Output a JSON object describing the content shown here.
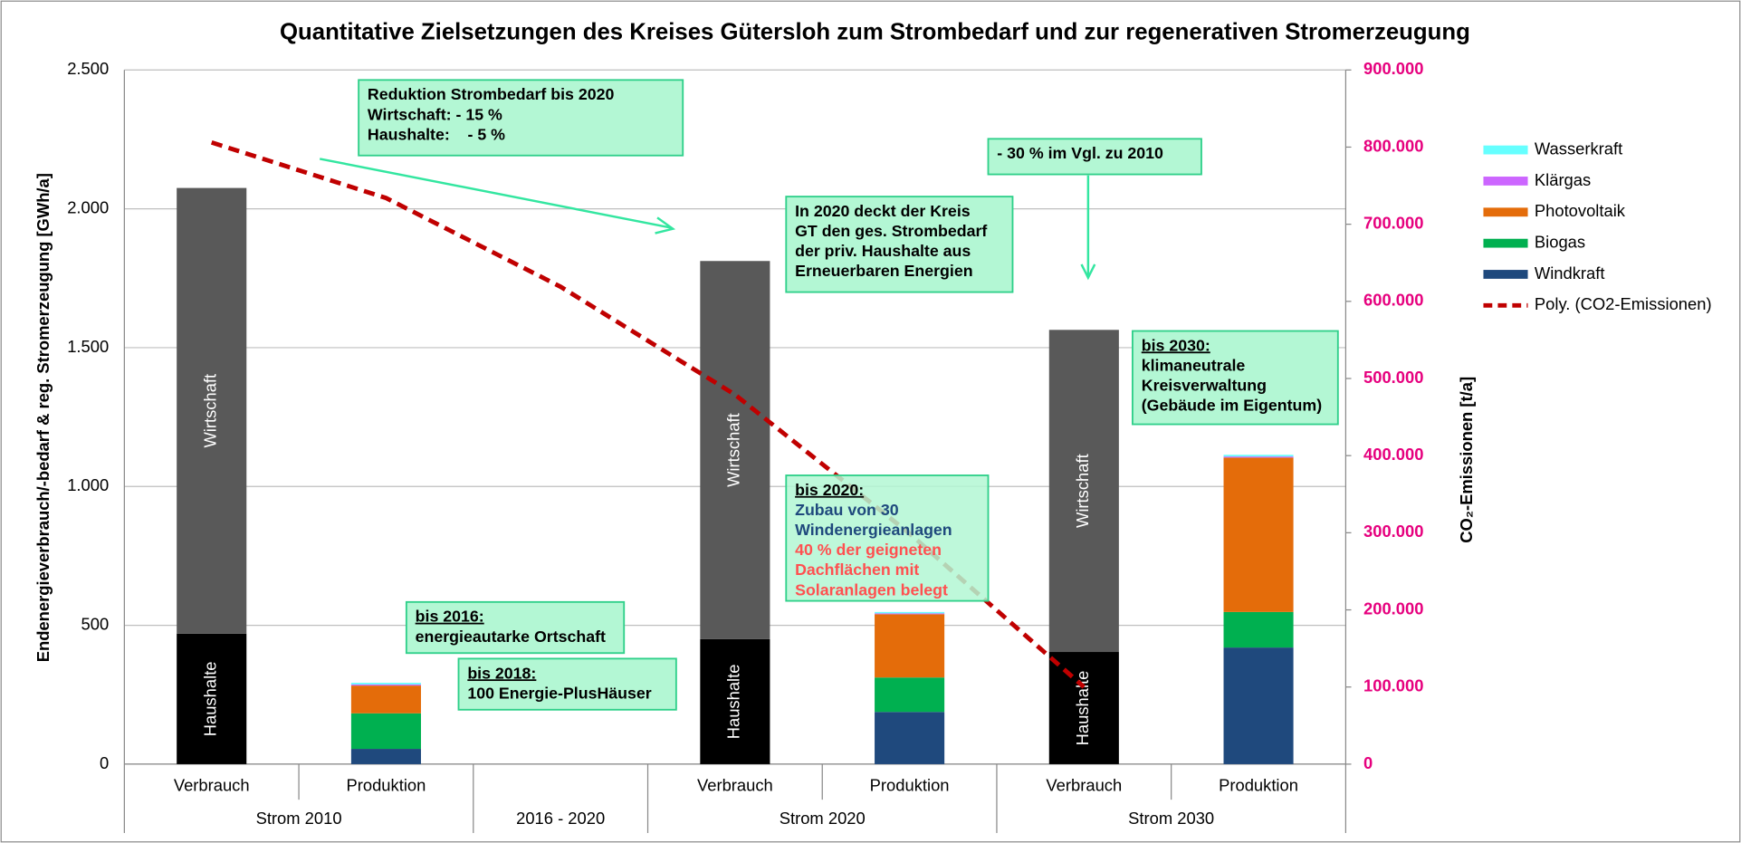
{
  "chart_data": {
    "type": "bar",
    "stacked": true,
    "title": "Quantitative Zielsetzungen des Kreises Gütersloh zum Strombedarf und zur regenerativen Stromerzeugung",
    "y_label": "Endenergieverbrauch/-bedarf & reg. Stromerzeugung [GWh/a]",
    "y2_label": "CO₂-Emissionen [t/a]",
    "categories": [
      "Verbrauch",
      "Produktion",
      null,
      "Verbrauch",
      "Produktion",
      "Verbrauch",
      "Produktion"
    ],
    "groups": [
      "Strom 2010",
      "Strom 2010",
      "2016 - 2020",
      "Strom 2020",
      "Strom 2020",
      "Strom 2030",
      "Strom 2030"
    ],
    "ylim": [
      0,
      2500
    ],
    "yticks": [
      0,
      500,
      {
        "value": 1000,
        "label": "1.000"
      },
      {
        "value": 1500,
        "label": "1.500"
      },
      {
        "value": 2000,
        "label": "2.000"
      },
      {
        "value": 2500,
        "label": "2.500"
      }
    ],
    "y2lim": [
      0,
      900000
    ],
    "y2ticks": [
      {
        "value": 0,
        "label": "0"
      },
      {
        "value": 100000,
        "label": "100.000"
      },
      {
        "value": 200000,
        "label": "200.000"
      },
      {
        "value": 300000,
        "label": "300.000"
      },
      {
        "value": 400000,
        "label": "400.000"
      },
      {
        "value": 500000,
        "label": "500.000"
      },
      {
        "value": 600000,
        "label": "600.000"
      },
      {
        "value": 700000,
        "label": "700.000"
      },
      {
        "value": 800000,
        "label": "800.000"
      },
      {
        "value": 900000,
        "label": "900.000"
      }
    ],
    "grid": true,
    "legend": "right",
    "series": [
      {
        "name": "Haushalte",
        "color": "#000000",
        "in_legend": false,
        "label_inside": true,
        "values": [
          470,
          null,
          null,
          450,
          null,
          404,
          null
        ]
      },
      {
        "name": "Wirtschaft",
        "color": "#595959",
        "in_legend": false,
        "label_inside": true,
        "values": [
          1605,
          null,
          null,
          1362,
          null,
          1160,
          null
        ]
      },
      {
        "name": "Windkraft",
        "color": "#1f497d",
        "in_legend": true,
        "values": [
          null,
          55,
          null,
          null,
          188,
          null,
          420
        ]
      },
      {
        "name": "Biogas",
        "color": "#00b050",
        "in_legend": true,
        "values": [
          null,
          128,
          null,
          null,
          124,
          null,
          128
        ]
      },
      {
        "name": "Photovoltaik",
        "color": "#e46c0a",
        "in_legend": true,
        "values": [
          null,
          100,
          null,
          null,
          228,
          null,
          556
        ]
      },
      {
        "name": "Klärgas",
        "color": "#cc66ff",
        "in_legend": true,
        "values": [
          null,
          4,
          null,
          null,
          3,
          null,
          4
        ]
      },
      {
        "name": "Wasserkraft",
        "color": "#66ffff",
        "in_legend": true,
        "values": [
          null,
          6,
          null,
          null,
          5,
          null,
          6
        ]
      },
      {
        "name": "Poly. (CO2-Emissionen)",
        "color": "#c00000",
        "type": "line",
        "dashed": true,
        "axis": "y2",
        "in_legend": true,
        "values": [
          806000,
          734000,
          619000,
          479000,
          299000,
          100000,
          null
        ]
      }
    ],
    "annotations": [
      {
        "lines": [
          {
            "text": "Reduktion Strombedarf bis 2020"
          },
          {
            "text": "Wirtschaft: - 15 %"
          },
          {
            "text": "Haushalte:    - 5 %"
          }
        ]
      },
      {
        "lines": [
          {
            "text": "- 30 % im Vgl. zu 2010"
          }
        ]
      },
      {
        "lines": [
          {
            "text": "In 2020 deckt der Kreis"
          },
          {
            "text": "GT den ges. Strombedarf"
          },
          {
            "text": "der priv. Haushalte aus"
          },
          {
            "text": "Erneuerbaren Energien"
          }
        ]
      },
      {
        "lines": [
          {
            "text": "bis 2030:",
            "underline": true
          },
          {
            "text": "klimaneutrale"
          },
          {
            "text": "Kreisverwaltung"
          },
          {
            "text": "(Gebäude im Eigentum)"
          }
        ]
      },
      {
        "lines": [
          {
            "text": "bis 2020:",
            "underline": true
          },
          {
            "text": "Zubau von 30",
            "color": "#1f497d"
          },
          {
            "text": "Windenergieanlagen",
            "color": "#1f497d"
          },
          {
            "text": "40 % der geigneten",
            "color": "#ff5050"
          },
          {
            "text": "Dachflächen mit",
            "color": "#ff5050"
          },
          {
            "text": "Solaranlagen belegt",
            "color": "#ff5050"
          }
        ]
      },
      {
        "lines": [
          {
            "text": "bis 2016:",
            "underline": true
          },
          {
            "text": "energieautarke Ortschaft"
          }
        ]
      },
      {
        "lines": [
          {
            "text": "bis 2018:",
            "underline": true
          },
          {
            "text": "100 Energie-PlusHäuser"
          }
        ]
      }
    ]
  }
}
